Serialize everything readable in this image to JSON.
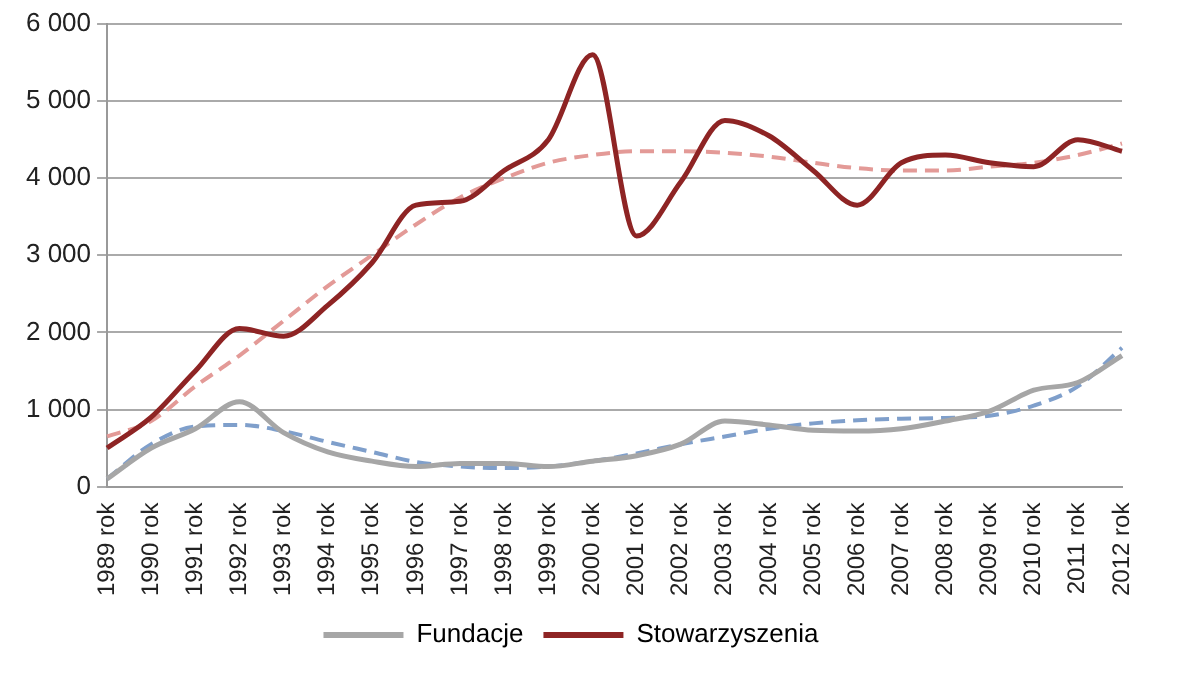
{
  "chart_data": {
    "type": "line",
    "categories": [
      "1989 rok",
      "1990 rok",
      "1991 rok",
      "1992 rok",
      "1993 rok",
      "1994 rok",
      "1995 rok",
      "1996 rok",
      "1997 rok",
      "1998 rok",
      "1999 rok",
      "2000 rok",
      "2001 rok",
      "2002 rok",
      "2003 rok",
      "2004 rok",
      "2005 rok",
      "2006 rok",
      "2007 rok",
      "2008 rok",
      "2009 rok",
      "2010 rok",
      "2011 rok",
      "2012 rok"
    ],
    "series": [
      {
        "name": "Fundacje",
        "color": "#a6a6a6",
        "values": [
          100,
          500,
          750,
          1100,
          700,
          450,
          330,
          260,
          300,
          300,
          260,
          330,
          400,
          550,
          850,
          800,
          730,
          720,
          750,
          850,
          980,
          1250,
          1350,
          1700
        ]
      },
      {
        "name": "Stowarzyszenia",
        "color": "#8e2424",
        "values": [
          500,
          900,
          1500,
          2050,
          1950,
          2350,
          2900,
          3650,
          3700,
          4100,
          4500,
          5600,
          3250,
          3950,
          4750,
          4550,
          4100,
          3650,
          4200,
          4300,
          4200,
          4150,
          4500,
          4350
        ]
      },
      {
        "color": "#e39a97",
        "line_style": "dashed",
        "values": [
          650,
          850,
          1300,
          1700,
          2150,
          2600,
          3000,
          3400,
          3750,
          4000,
          4200,
          4300,
          4350,
          4350,
          4330,
          4280,
          4200,
          4130,
          4100,
          4100,
          4150,
          4200,
          4300,
          4450
        ]
      },
      {
        "color": "#7f9fcb",
        "line_style": "dashed",
        "values": [
          100,
          550,
          780,
          800,
          720,
          580,
          450,
          320,
          260,
          240,
          260,
          330,
          430,
          550,
          650,
          750,
          820,
          860,
          880,
          890,
          920,
          1050,
          1300,
          1800
        ]
      }
    ],
    "ylim": [
      0,
      6000
    ],
    "yticks": [
      {
        "value": 0,
        "label": "0"
      },
      {
        "value": 1000,
        "label": "1 000"
      },
      {
        "value": 2000,
        "label": "2 000"
      },
      {
        "value": 3000,
        "label": "3 000"
      },
      {
        "value": 4000,
        "label": "4 000"
      },
      {
        "value": 5000,
        "label": "5 000"
      },
      {
        "value": 6000,
        "label": "6 000"
      }
    ],
    "grid": "y",
    "legend": "bottom",
    "marker": "none",
    "line_style": "solid"
  }
}
